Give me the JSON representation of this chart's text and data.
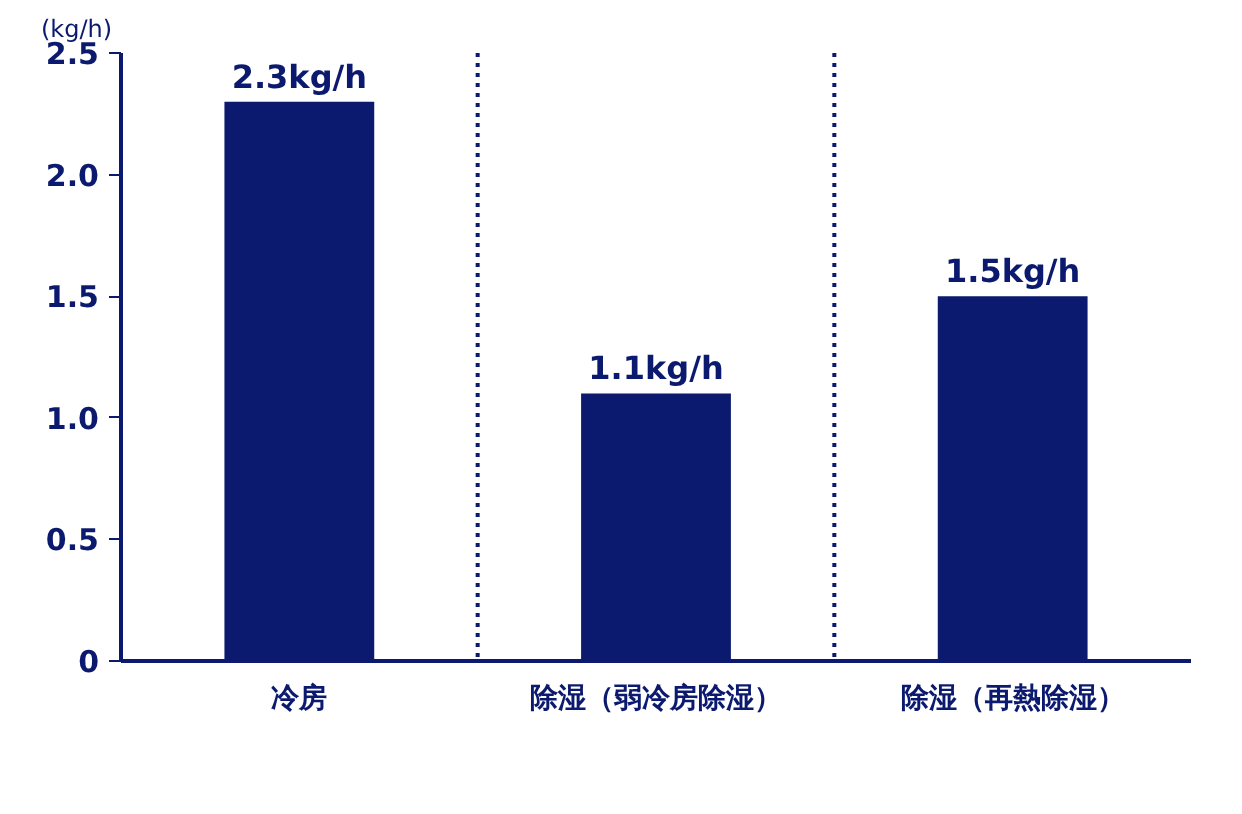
{
  "chart_data": {
    "type": "bar",
    "ylabel": "(kg/h)",
    "categories": [
      "冷房",
      "除湿（弱冷房除湿）",
      "除湿（再熱除湿）"
    ],
    "values": [
      2.3,
      1.1,
      1.5
    ],
    "value_labels": [
      "2.3kg/h",
      "1.1kg/h",
      "1.5kg/h"
    ],
    "color": "#0b1a6e",
    "ylim": [
      0,
      2.5
    ],
    "yticks": [
      0,
      {
        "value": 0.5,
        "label": "0.5"
      },
      {
        "value": 1.0,
        "label": "1.0"
      },
      {
        "value": 1.5,
        "label": "1.5"
      },
      {
        "value": 2.0,
        "label": "2.0"
      },
      {
        "value": 2.5,
        "label": "2.5"
      }
    ],
    "grid": false
  }
}
